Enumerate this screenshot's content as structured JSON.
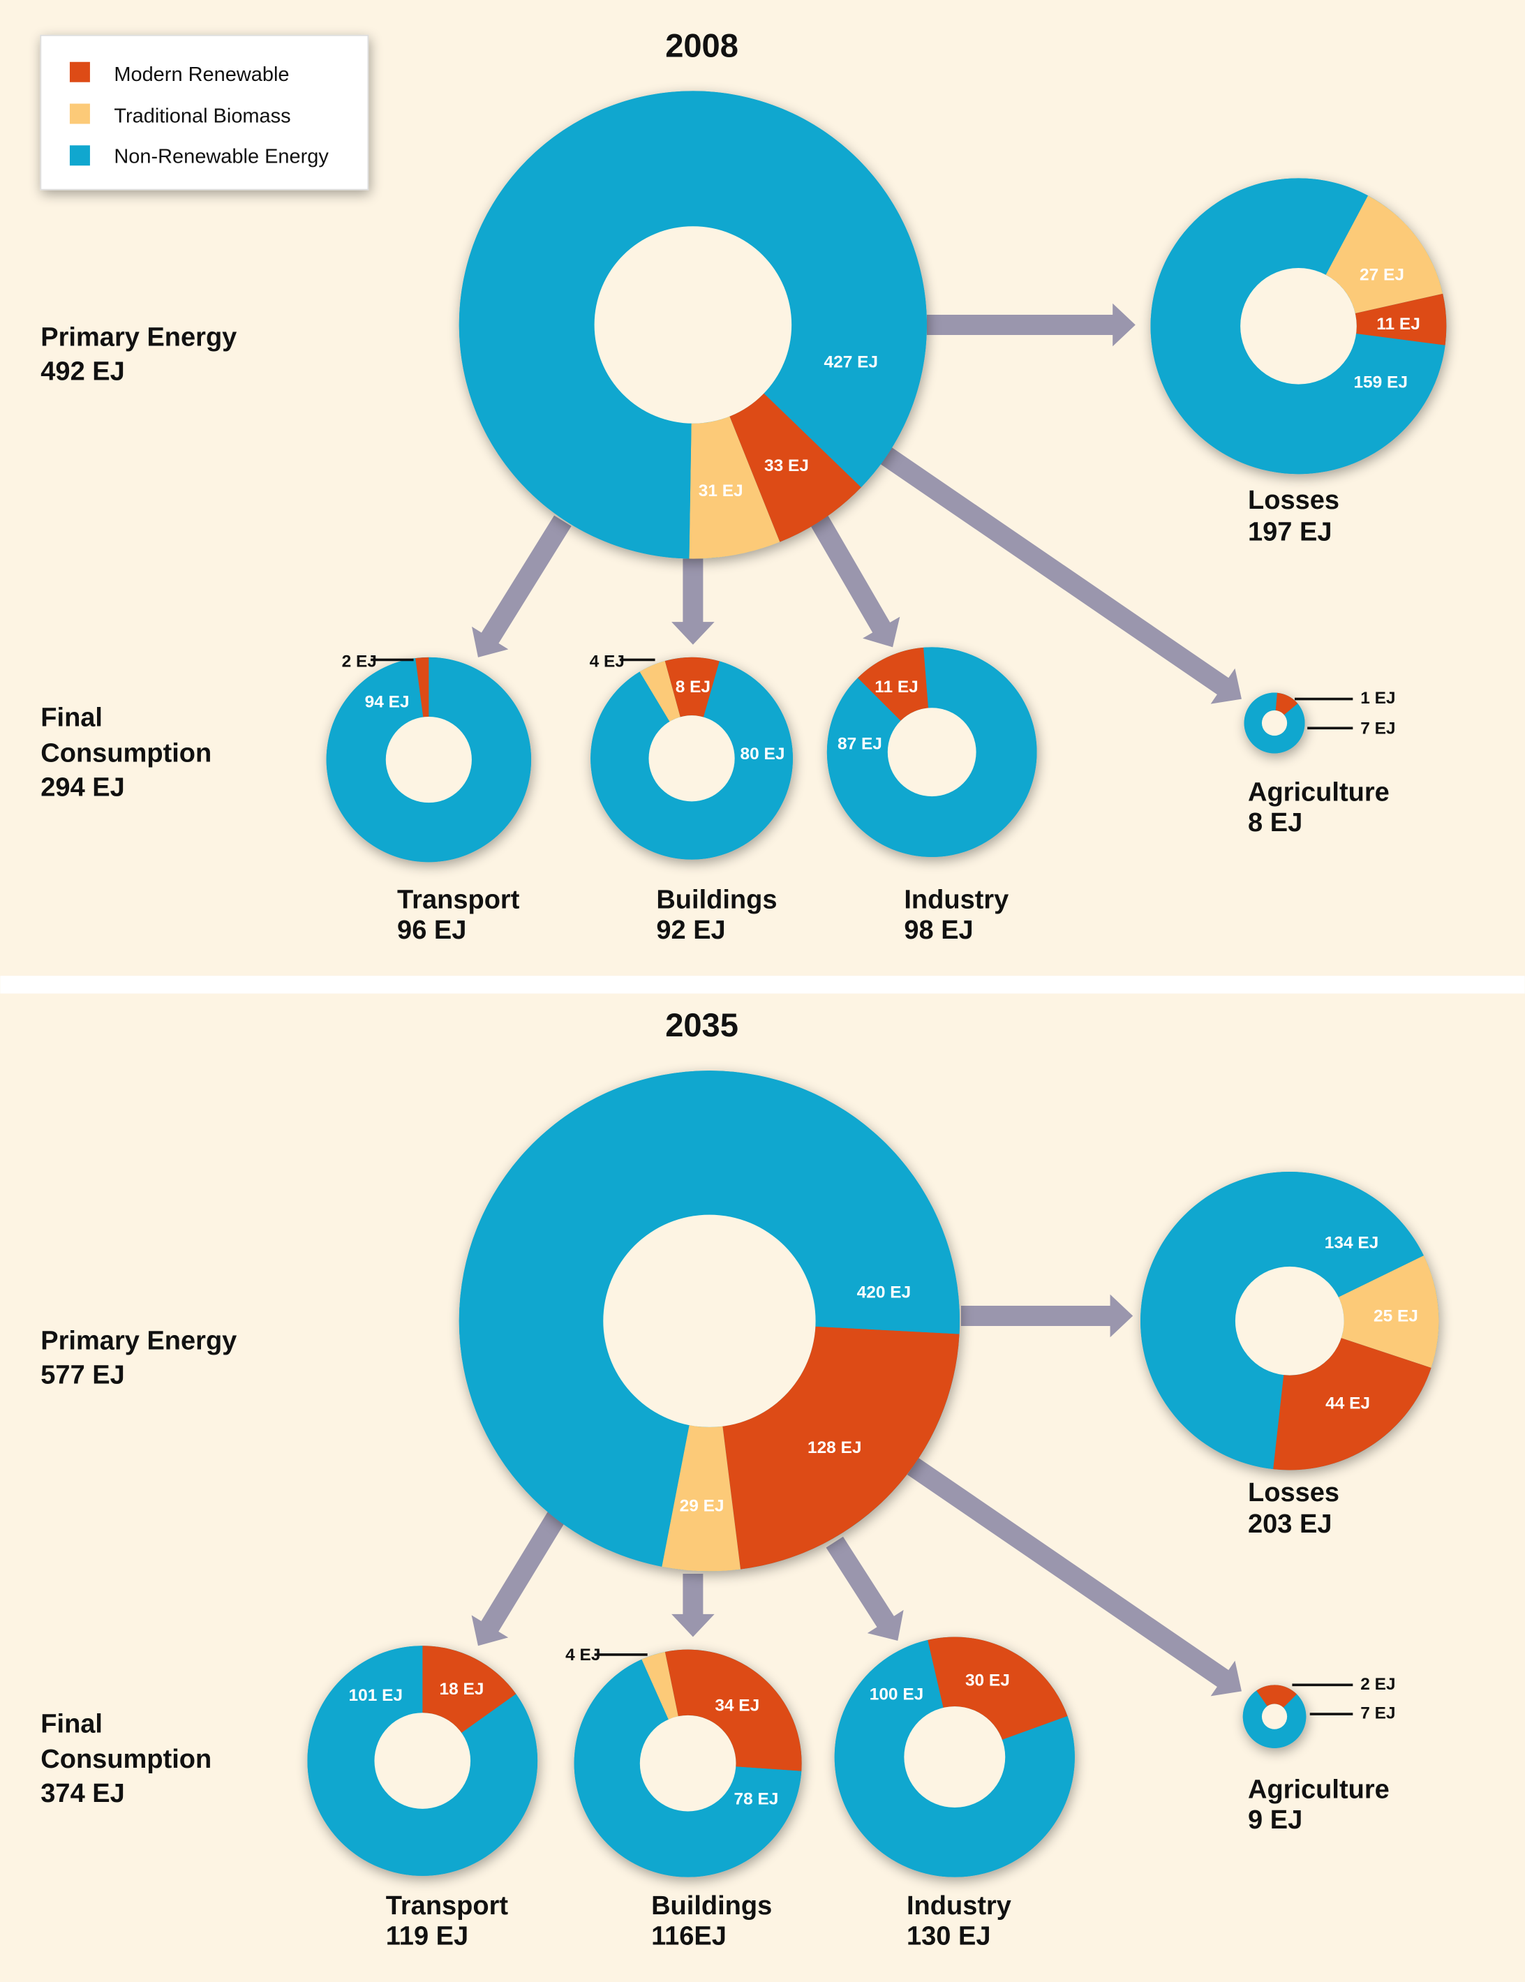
{
  "colors": {
    "modern_renewable": "#dd4b16",
    "traditional_biomass": "#fcca78",
    "non_renewable": "#10a7cf",
    "arrow": "#9a96ad",
    "background": "#fdf4e3"
  },
  "chart_data": {
    "type": "pie",
    "variant": "donut",
    "legend_position": "top-left",
    "legend": [
      {
        "label": "Modern Renewable",
        "color": "#dd4b16"
      },
      {
        "label": "Traditional Biomass",
        "color": "#fcca78"
      },
      {
        "label": "Non-Renewable Energy",
        "color": "#10a7cf"
      }
    ],
    "panels": [
      {
        "year": "2008",
        "primary_label": [
          "Primary Energy",
          "492 EJ"
        ],
        "final_label": [
          "Final",
          "Consumption",
          "294 EJ"
        ],
        "donuts": [
          {
            "id": "primary",
            "name": "",
            "total": "",
            "segments": [
              {
                "category": "Modern Renewable",
                "value": 33,
                "label": "33 EJ"
              },
              {
                "category": "Traditional Biomass",
                "value": 31,
                "label": "31 EJ"
              },
              {
                "category": "Non-Renewable Energy",
                "value": 427,
                "label": "427 EJ"
              }
            ]
          },
          {
            "id": "losses",
            "name": "Losses",
            "total": "197 EJ",
            "segments": [
              {
                "category": "Traditional Biomass",
                "value": 27,
                "label": "27 EJ"
              },
              {
                "category": "Modern Renewable",
                "value": 11,
                "label": "11 EJ"
              },
              {
                "category": "Non-Renewable Energy",
                "value": 159,
                "label": "159 EJ"
              }
            ]
          },
          {
            "id": "transport",
            "name": "Transport",
            "total": "96 EJ",
            "segments": [
              {
                "category": "Non-Renewable Energy",
                "value": 94,
                "label": "94 EJ"
              },
              {
                "category": "Modern Renewable",
                "value": 2,
                "label": "2 EJ"
              }
            ]
          },
          {
            "id": "buildings",
            "name": "Buildings",
            "total": "92 EJ",
            "segments": [
              {
                "category": "Traditional Biomass",
                "value": 4,
                "label": "4 EJ"
              },
              {
                "category": "Modern Renewable",
                "value": 8,
                "label": "8 EJ"
              },
              {
                "category": "Non-Renewable Energy",
                "value": 80,
                "label": "80 EJ"
              }
            ]
          },
          {
            "id": "industry",
            "name": "Industry",
            "total": "98 EJ",
            "segments": [
              {
                "category": "Modern Renewable",
                "value": 11,
                "label": "11 EJ"
              },
              {
                "category": "Non-Renewable Energy",
                "value": 87,
                "label": "87 EJ"
              }
            ]
          },
          {
            "id": "agriculture",
            "name": "Agriculture",
            "total": "8 EJ",
            "segments": [
              {
                "category": "Modern Renewable",
                "value": 1,
                "label": "1 EJ"
              },
              {
                "category": "Non-Renewable Energy",
                "value": 7,
                "label": "7 EJ"
              }
            ]
          }
        ]
      },
      {
        "year": "2035",
        "primary_label": [
          "Primary Energy",
          "577 EJ"
        ],
        "final_label": [
          "Final",
          "Consumption",
          "374 EJ"
        ],
        "donuts": [
          {
            "id": "primary",
            "name": "",
            "total": "",
            "segments": [
              {
                "category": "Modern Renewable",
                "value": 128,
                "label": "128 EJ"
              },
              {
                "category": "Traditional Biomass",
                "value": 29,
                "label": "29 EJ"
              },
              {
                "category": "Non-Renewable Energy",
                "value": 420,
                "label": "420 EJ"
              }
            ]
          },
          {
            "id": "losses",
            "name": "Losses",
            "total": "203 EJ",
            "segments": [
              {
                "category": "Traditional Biomass",
                "value": 25,
                "label": "25 EJ"
              },
              {
                "category": "Modern Renewable",
                "value": 44,
                "label": "44 EJ"
              },
              {
                "category": "Non-Renewable Energy",
                "value": 134,
                "label": "134 EJ"
              }
            ]
          },
          {
            "id": "transport",
            "name": "Transport",
            "total": "119 EJ",
            "segments": [
              {
                "category": "Modern Renewable",
                "value": 18,
                "label": "18 EJ"
              },
              {
                "category": "Non-Renewable Energy",
                "value": 101,
                "label": "101 EJ"
              }
            ]
          },
          {
            "id": "buildings",
            "name": "Buildings",
            "total": "116EJ",
            "segments": [
              {
                "category": "Traditional Biomass",
                "value": 4,
                "label": "4 EJ"
              },
              {
                "category": "Modern Renewable",
                "value": 34,
                "label": "34 EJ"
              },
              {
                "category": "Non-Renewable Energy",
                "value": 78,
                "label": "78 EJ"
              }
            ]
          },
          {
            "id": "industry",
            "name": "Industry",
            "total": "130 EJ",
            "segments": [
              {
                "category": "Modern Renewable",
                "value": 30,
                "label": "30 EJ"
              },
              {
                "category": "Non-Renewable Energy",
                "value": 100,
                "label": "100 EJ"
              }
            ]
          },
          {
            "id": "agriculture",
            "name": "Agriculture",
            "total": "9 EJ",
            "segments": [
              {
                "category": "Modern Renewable",
                "value": 2,
                "label": "2 EJ"
              },
              {
                "category": "Non-Renewable Energy",
                "value": 7,
                "label": "7 EJ"
              }
            ]
          }
        ]
      }
    ]
  }
}
